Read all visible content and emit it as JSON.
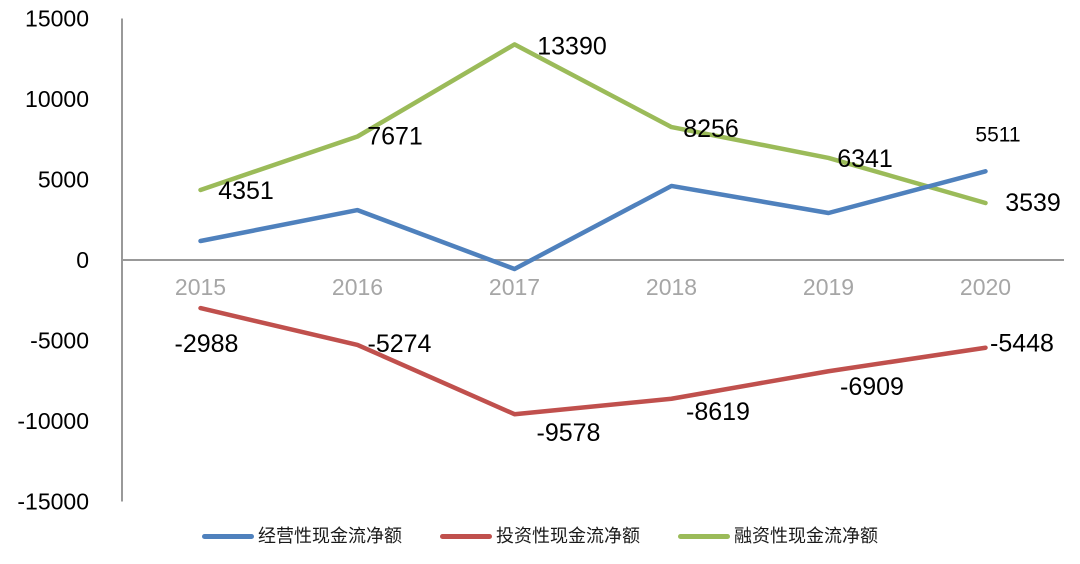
{
  "chart_data": {
    "type": "line",
    "title": "",
    "xlabel": "",
    "ylabel": "",
    "categories": [
      "2015",
      "2016",
      "2017",
      "2018",
      "2019",
      "2020"
    ],
    "series": [
      {
        "name": "经营性现金流净额",
        "color": "#4F81BD",
        "values": [
          1180,
          3100,
          -560,
          4600,
          2920,
          5511
        ],
        "point_labels": [
          "",
          "",
          "",
          "",
          "",
          "5511"
        ]
      },
      {
        "name": "投资性现金流净额",
        "color": "#C0504D",
        "values": [
          -2988,
          -5274,
          -9578,
          -8619,
          -6909,
          -5448
        ],
        "point_labels": [
          "-2988",
          "-5274",
          "-9578",
          "-8619",
          "-6909",
          "-5448"
        ]
      },
      {
        "name": "融资性现金流净额",
        "color": "#9BBB59",
        "values": [
          4351,
          7671,
          13390,
          8256,
          6341,
          3539
        ],
        "point_labels": [
          "4351",
          "7671",
          "13390",
          "8256",
          "6341",
          "3539"
        ]
      }
    ],
    "ylim": [
      -15000,
      15000
    ],
    "y_ticks": [
      15000,
      10000,
      5000,
      0,
      -5000,
      -10000,
      -15000
    ],
    "y_tick_labels": [
      "15000",
      "10000",
      "5000",
      "0",
      "-5000",
      "-10000",
      "-15000"
    ],
    "grid": "zero-line-only",
    "legend_position": "bottom"
  },
  "colors": {
    "axis_line": "#999999",
    "x_tick_label": "#A6A6A6",
    "y_tick_label": "#000000",
    "data_label": "#000000",
    "background": "#FFFFFF"
  }
}
